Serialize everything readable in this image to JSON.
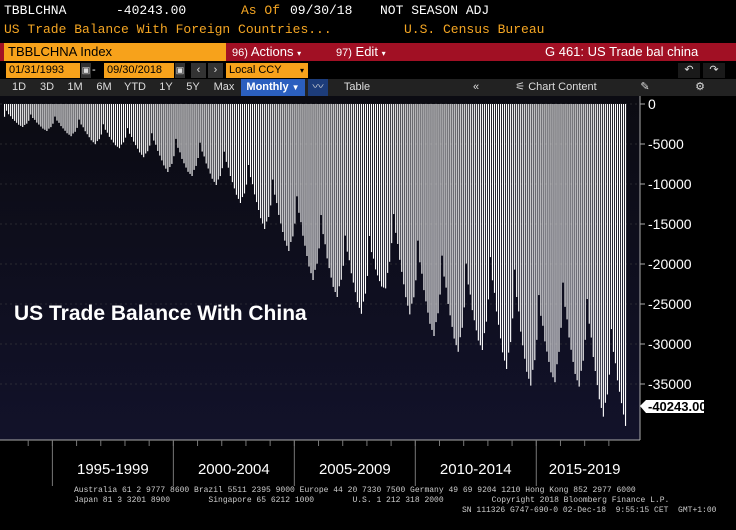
{
  "header": {
    "ticker": "TBBLCHNA",
    "last_value": "-40243.00",
    "as_of_label": "As Of",
    "as_of_date": "09/30/18",
    "season_note": "NOT SEASON ADJ",
    "description": "US Trade Balance With Foreign Countries...",
    "source": "U.S. Census Bureau"
  },
  "toolbar": {
    "index_label": "TBBLCHNA Index",
    "actions_num": "96)",
    "actions_label": "Actions",
    "edit_num": "97)",
    "edit_label": "Edit",
    "chart_title": "G 461: US Trade bal china",
    "start_date": "01/31/1993",
    "end_date": "09/30/2018",
    "currency": "Local CCY",
    "undo_icon": "undo-icon",
    "redo_icon": "redo-icon"
  },
  "periods": [
    "1D",
    "3D",
    "1M",
    "6M",
    "YTD",
    "1Y",
    "5Y",
    "Max"
  ],
  "frequency": "Monthly",
  "table_label": "Table",
  "chart_content_label": "Chart Content",
  "footer": {
    "line1": "Australia 61 2 9777 8600 Brazil 5511 2395 9000 Europe 44 20 7330 7500 Germany 49 69 9204 1210 Hong Kong 852 2977 6000",
    "line2": "Japan 81 3 3201 8900        Singapore 65 6212 1000        U.S. 1 212 318 2000          Copyright 2018 Bloomberg Finance L.P.",
    "line3": "SN 111326 G747-690-0 02-Dec-18  9:55:15 CET  GMT+1:00"
  },
  "colors": {
    "background": "#000000",
    "bars": "#ffffff",
    "grid": "#444444",
    "accent_orange": "#f7a21b",
    "accent_red": "#a11024"
  },
  "chart_data": {
    "type": "bar",
    "title": "US Trade Balance With China",
    "frequency": "monthly",
    "x_start": "1993-01",
    "x_end": "2018-09",
    "x_groups": [
      "1995-1999",
      "2000-2004",
      "2005-2009",
      "2010-2014",
      "2015-2019"
    ],
    "y_ticks": [
      0,
      -5000,
      -10000,
      -15000,
      -20000,
      -25000,
      -30000,
      -35000
    ],
    "ylim": [
      -42000,
      1000
    ],
    "last_value_label": "-40243.00",
    "last_value": -40243,
    "grid": true,
    "annual_low": [
      -2500,
      -3000,
      -3500,
      -4200,
      -5300,
      -5600,
      -7000,
      -9000,
      -9000,
      -10500,
      -13000,
      -16500,
      -19000,
      -23000,
      -24500,
      -26800,
      -21800,
      -27800,
      -29400,
      -31500,
      -30500,
      -34000,
      -35600,
      -34500,
      -35600,
      -40243
    ],
    "annual_high": [
      -500,
      -1000,
      -1200,
      -1500,
      -2000,
      -2500,
      -3000,
      -3500,
      -4000,
      -5000,
      -6500,
      -8000,
      -10000,
      -12000,
      -15000,
      -15000,
      -12000,
      -15000,
      -17000,
      -18000,
      -17000,
      -18000,
      -22000,
      -20000,
      -22000,
      -26000
    ]
  }
}
